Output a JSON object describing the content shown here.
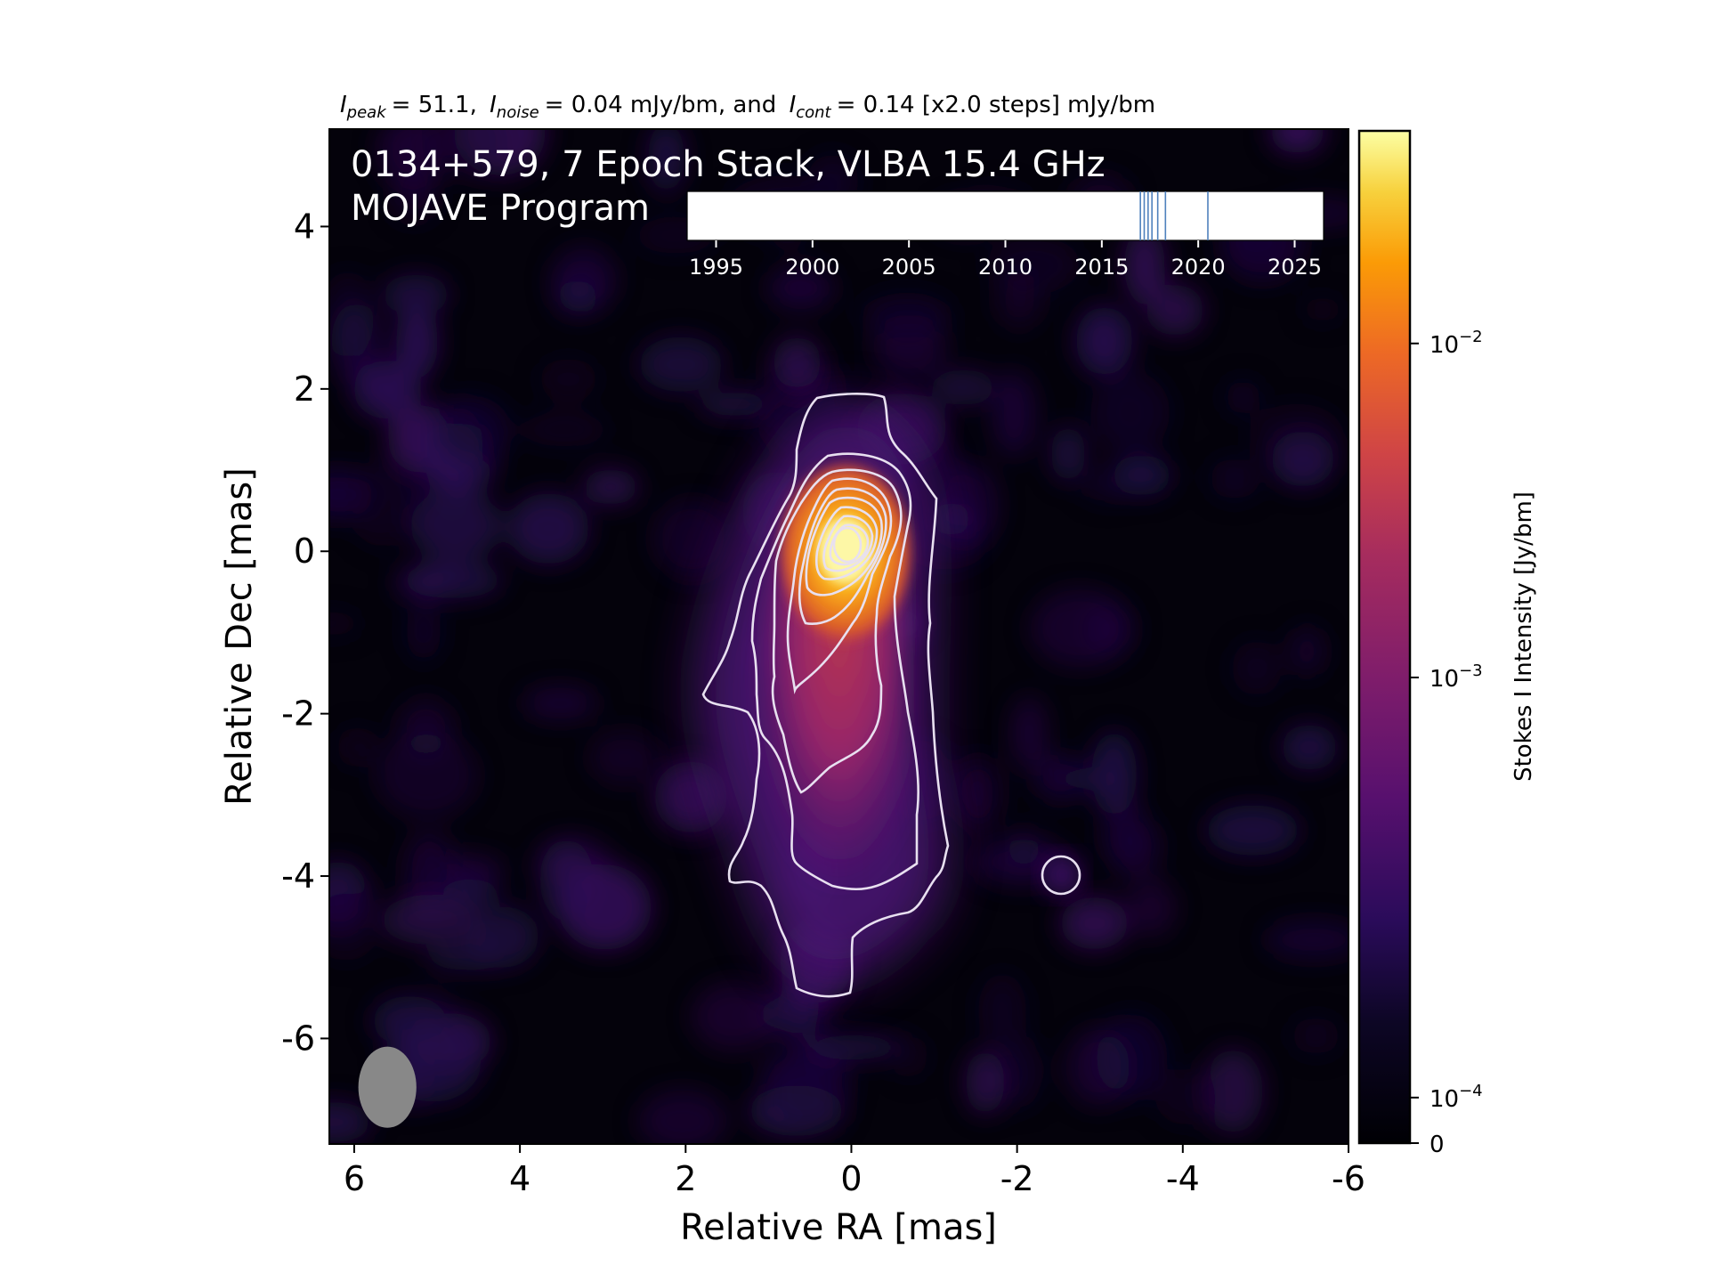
{
  "chart_data": {
    "type": "heatmap",
    "header": {
      "peak_label": "peak",
      "peak_value": "= 51.1,",
      "noise_label": "noise",
      "noise_value": "= 0.04 mJy/bm, and",
      "cont_label": "cont",
      "cont_value": "= 0.14 [x2.0 steps] mJy/bm"
    },
    "title_line1": "0134+579, 7 Epoch Stack, VLBA 15.4 GHz",
    "title_line2": "MOJAVE Program",
    "xlabel": "Relative RA [mas]",
    "ylabel": "Relative Dec [mas]",
    "xlim": [
      6.3,
      -6.0
    ],
    "ylim": [
      -7.3,
      5.2
    ],
    "xticks": [
      6,
      4,
      2,
      0,
      -2,
      -4,
      -6
    ],
    "yticks": [
      4,
      2,
      0,
      -2,
      -4,
      -6
    ],
    "source": {
      "peak_position": [
        0.0,
        0.0
      ],
      "peak_intensity_mJy_per_beam": 51.1,
      "noise_mJy_per_beam": 0.04,
      "lowest_contour_mJy_per_beam": 0.14,
      "contour_step_factor": 2.0,
      "jet_direction": "south",
      "jet_extent_mas": [
        0.3,
        -5.4
      ],
      "isolated_blob": [
        -2.6,
        -4.0
      ]
    },
    "beam": {
      "center_mas": [
        5.6,
        -6.6
      ],
      "major_mas": 1.0,
      "minor_mas": 0.7,
      "color": "#888888"
    },
    "epoch_timeline": {
      "xlim": [
        1993.5,
        2026.5
      ],
      "ticks": [
        1995,
        2000,
        2005,
        2010,
        2015,
        2020,
        2025
      ],
      "epochs": [
        2017.0,
        2017.2,
        2017.4,
        2017.6,
        2017.9,
        2018.3,
        2020.5
      ],
      "epoch_color": "#4f81bd"
    },
    "colorbar": {
      "label": "Stokes I Intensity [Jy/bm]",
      "scale": "log",
      "tick_labels": [
        {
          "base": "10",
          "exp": "−2",
          "value": 0.01
        },
        {
          "base": "10",
          "exp": "−3",
          "value": 0.001
        },
        {
          "base": "10",
          "exp": "−4",
          "value": 0.0001
        },
        {
          "base": "0",
          "exp": "",
          "value": 0
        }
      ],
      "colormap": "inferno"
    }
  }
}
